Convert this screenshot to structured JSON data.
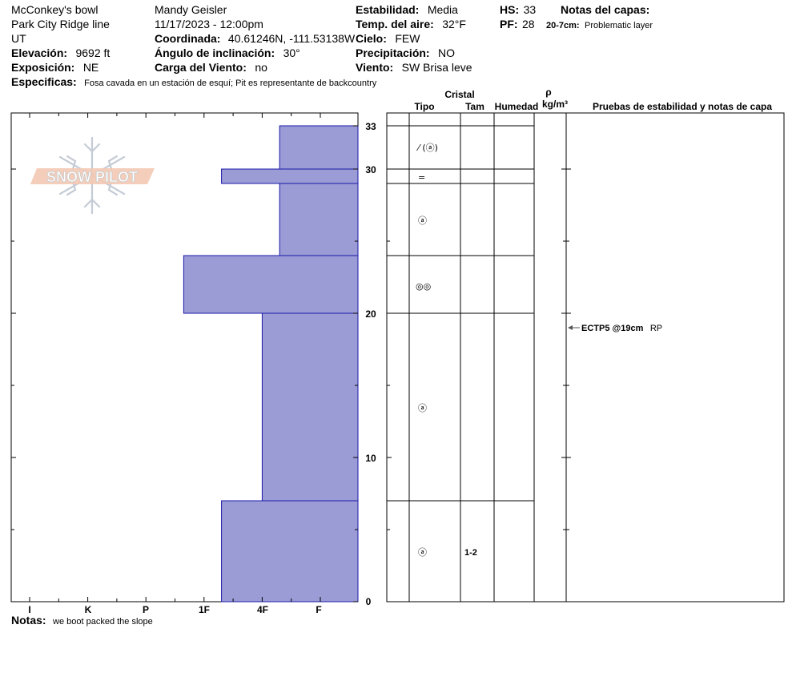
{
  "header": {
    "location": "McConkey's bowl",
    "sub_location": "Park City Ridge line",
    "state": "UT",
    "elevation_label": "Elevación:",
    "elevation_value": "9692 ft",
    "aspect_label": "Exposición:",
    "aspect_value": "NE",
    "specifics_label": "Especificas:",
    "specifics_value": "Fosa cavada en un estación de esquí; Pit es representante de backcountry",
    "observer": "Mandy Geisler",
    "datetime": "11/17/2023 - 12:00pm",
    "coord_label": "Coordinada:",
    "coord_value": "40.61246N, -111.53138W",
    "slope_label": "Ángulo de inclinación:",
    "slope_value": "30°",
    "wind_load_label": "Carga del Viento:",
    "wind_load_value": "no",
    "stability_label": "Estabilidad:",
    "stability_value": "Media",
    "air_temp_label": "Temp. del aire:",
    "air_temp_value": "32°F",
    "sky_label": "Cielo:",
    "sky_value": "FEW",
    "precip_label": "Precipitación:",
    "precip_value": "NO",
    "wind_label": "Viento:",
    "wind_value": "SW  Brisa leve",
    "hs_label": "HS:",
    "hs_value": "33",
    "pf_label": "PF:",
    "pf_value": "28",
    "layer_notes_title": "Notas del capas:",
    "layer_note_range": "20-7cm:",
    "layer_note_text": "Problematic layer"
  },
  "logo_text": "SNOW PILOT",
  "columns": {
    "crystal": "Cristal",
    "type": "Tipo",
    "size": "Tam",
    "moisture": "Humedad",
    "rho": "ρ",
    "density_unit": "kg/m³",
    "tests": "Pruebas de estabilidad y notas de capa"
  },
  "notes_label": "Notas:",
  "notes_value": "we boot packed the slope",
  "layer_rows": [
    {
      "grain": "⁄ (ⓐ)",
      "size": ""
    },
    {
      "grain": "=",
      "size": ""
    },
    {
      "grain": "ⓐ",
      "size": ""
    },
    {
      "grain": "◎◎",
      "size": ""
    },
    {
      "grain": "ⓐ",
      "size": ""
    },
    {
      "grain": "ⓐ",
      "size": "1-2"
    }
  ],
  "test_result": {
    "depth_cm": 19,
    "label": "ECTP5 @19cm",
    "quality": "RP"
  },
  "chart_data": {
    "type": "bar",
    "orientation": "horizontal",
    "xlabel": "",
    "ylabel": "",
    "y_unit": "cm",
    "ylim": [
      0,
      33
    ],
    "y_ticks": [
      0,
      10,
      20,
      30,
      33
    ],
    "hardness_scale": [
      "I",
      "K",
      "P",
      "1F",
      "4F",
      "F"
    ],
    "bar_color": "#9b9bd6",
    "edge_color": "#1a1aa8",
    "layers": [
      {
        "bottom": 30,
        "top": 33,
        "hardness_index": 0.7
      },
      {
        "bottom": 29,
        "top": 30,
        "hardness_index": 1.7
      },
      {
        "bottom": 24,
        "top": 29,
        "hardness_index": 0.7
      },
      {
        "bottom": 20,
        "top": 24,
        "hardness_index": 2.35
      },
      {
        "bottom": 7,
        "top": 20,
        "hardness_index": 1.0
      },
      {
        "bottom": 0,
        "top": 7,
        "hardness_index": 1.7
      }
    ],
    "layer_boundaries": [
      33,
      30,
      29,
      24,
      20,
      7,
      0
    ]
  }
}
